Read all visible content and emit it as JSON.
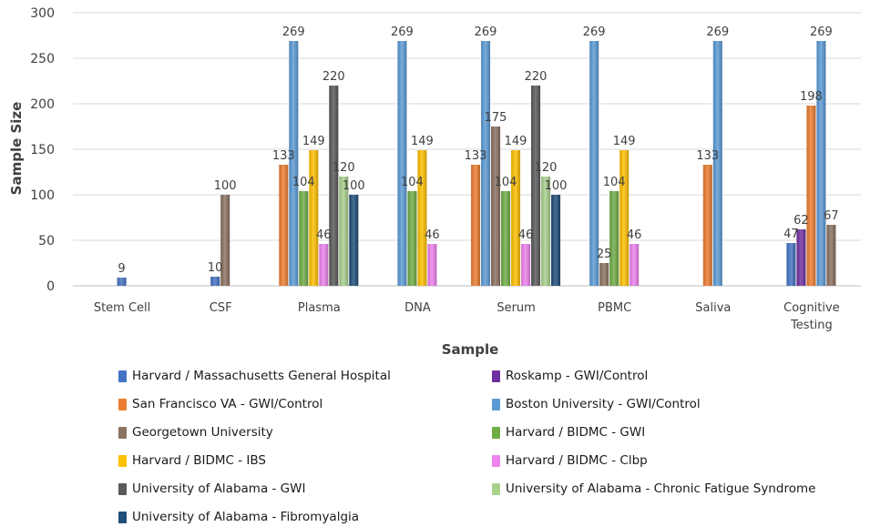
{
  "chart_data": {
    "type": "bar",
    "title": "",
    "xlabel": "Sample",
    "ylabel": "Sample Size",
    "ylim": [
      0,
      300
    ],
    "yticks": [
      0,
      50,
      100,
      150,
      200,
      250,
      300
    ],
    "grid": true,
    "legend_position": "bottom",
    "categories": [
      [
        "Stem Cell"
      ],
      [
        "CSF"
      ],
      [
        "Plasma"
      ],
      [
        "DNA"
      ],
      [
        "Serum"
      ],
      [
        "PBMC"
      ],
      [
        "Saliva"
      ],
      [
        "Cognitive",
        "Testing"
      ]
    ],
    "series": [
      {
        "name": "Harvard / Massachusetts General Hospital",
        "color": "#4472C4",
        "values": [
          9,
          10,
          null,
          null,
          null,
          null,
          null,
          47
        ]
      },
      {
        "name": "Roskamp - GWI/Control",
        "color": "#7030A0",
        "values": [
          null,
          null,
          null,
          null,
          null,
          null,
          null,
          62
        ]
      },
      {
        "name": "San Francisco VA - GWI/Control",
        "color": "#ED7D31",
        "values": [
          null,
          null,
          133,
          null,
          133,
          null,
          133,
          198
        ]
      },
      {
        "name": "Boston University - GWI/Control",
        "color": "#5B9BD5",
        "values": [
          null,
          null,
          269,
          269,
          269,
          269,
          269,
          269
        ]
      },
      {
        "name": "Georgetown University",
        "color": "#8B7160",
        "values": [
          null,
          100,
          null,
          null,
          175,
          25,
          null,
          67
        ]
      },
      {
        "name": "Harvard / BIDMC - GWI",
        "color": "#70AD47",
        "values": [
          null,
          null,
          104,
          104,
          104,
          104,
          null,
          null
        ]
      },
      {
        "name": "Harvard / BIDMC - IBS",
        "color": "#FFC000",
        "values": [
          null,
          null,
          149,
          149,
          149,
          149,
          null,
          null
        ]
      },
      {
        "name": "Harvard / BIDMC - Clbp",
        "color": "#EE82EE",
        "values": [
          null,
          null,
          46,
          46,
          46,
          46,
          null,
          null
        ]
      },
      {
        "name": "University of Alabama - GWI",
        "color": "#595959",
        "values": [
          null,
          null,
          220,
          null,
          220,
          null,
          null,
          null
        ]
      },
      {
        "name": "University of Alabama - Chronic Fatigue Syndrome",
        "color": "#A9D18E",
        "values": [
          null,
          null,
          120,
          null,
          120,
          null,
          null,
          null
        ]
      },
      {
        "name": "University of Alabama - Fibromyalgia",
        "color": "#1F4E79",
        "values": [
          null,
          null,
          100,
          null,
          100,
          null,
          null,
          null
        ]
      }
    ]
  }
}
